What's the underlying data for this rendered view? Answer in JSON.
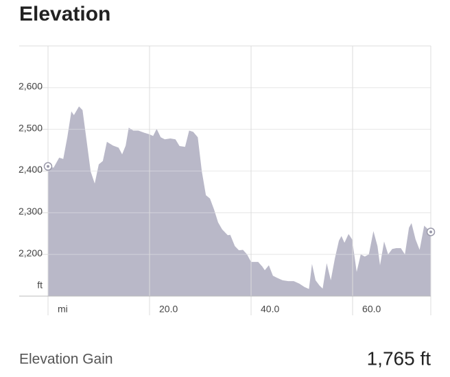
{
  "chart_data": {
    "type": "area",
    "title": "Elevation",
    "x": [
      0,
      1.1,
      2.2,
      3.0,
      3.8,
      4.6,
      5.1,
      6.1,
      6.8,
      7.6,
      8.4,
      9.2,
      10.0,
      10.8,
      11.6,
      12.8,
      13.9,
      14.6,
      15.3,
      15.9,
      16.8,
      17.8,
      18.9,
      20.0,
      20.7,
      21.4,
      22.2,
      23.0,
      24.1,
      25.1,
      25.9,
      27.0,
      27.8,
      28.6,
      29.5,
      30.3,
      31.1,
      31.9,
      32.7,
      33.5,
      34.3,
      35.4,
      35.9,
      36.8,
      37.6,
      38.4,
      39.2,
      40.0,
      41.4,
      42.2,
      42.7,
      43.5,
      44.3,
      45.1,
      46.2,
      47.3,
      48.4,
      49.5,
      50.5,
      51.4,
      52.0,
      52.7,
      53.5,
      54.1,
      54.9,
      55.7,
      56.5,
      57.3,
      57.8,
      58.4,
      59.2,
      59.9,
      60.8,
      61.6,
      62.4,
      63.2,
      64.1,
      64.9,
      65.4,
      66.2,
      67.0,
      67.8,
      68.6,
      69.5,
      70.3,
      71.1,
      71.6,
      72.4,
      73.2,
      74.1,
      75.4
    ],
    "values": [
      2411,
      2408,
      2432,
      2429,
      2481,
      2543,
      2534,
      2555,
      2546,
      2473,
      2399,
      2370,
      2416,
      2424,
      2470,
      2461,
      2456,
      2440,
      2461,
      2504,
      2497,
      2497,
      2492,
      2488,
      2484,
      2501,
      2481,
      2476,
      2478,
      2476,
      2460,
      2458,
      2497,
      2494,
      2481,
      2399,
      2342,
      2334,
      2308,
      2277,
      2260,
      2246,
      2247,
      2220,
      2210,
      2211,
      2200,
      2182,
      2182,
      2171,
      2162,
      2174,
      2149,
      2144,
      2138,
      2136,
      2136,
      2130,
      2122,
      2117,
      2177,
      2138,
      2125,
      2118,
      2179,
      2138,
      2190,
      2233,
      2244,
      2228,
      2249,
      2236,
      2158,
      2200,
      2195,
      2200,
      2256,
      2220,
      2174,
      2231,
      2200,
      2213,
      2215,
      2215,
      2200,
      2264,
      2275,
      2236,
      2211,
      2269,
      2254
    ],
    "color": "#b9b8c8",
    "xlim": [
      0,
      75.4
    ],
    "ylim": [
      2100,
      2700
    ],
    "xticks": [
      {
        "value": 0,
        "label": "mi"
      },
      {
        "value": 20,
        "label": "20.0"
      },
      {
        "value": 40,
        "label": "40.0"
      },
      {
        "value": 60,
        "label": "60.0"
      }
    ],
    "yticks": [
      {
        "value": 2200,
        "label": "2,200"
      },
      {
        "value": 2300,
        "label": "2,300"
      },
      {
        "value": 2400,
        "label": "2,400"
      },
      {
        "value": 2500,
        "label": "2,500"
      },
      {
        "value": 2600,
        "label": "2,600"
      }
    ],
    "y_label": "ft",
    "grid": true,
    "endpoint_markers": true
  },
  "stats": {
    "label": "Elevation Gain",
    "value": "1,765 ft"
  }
}
